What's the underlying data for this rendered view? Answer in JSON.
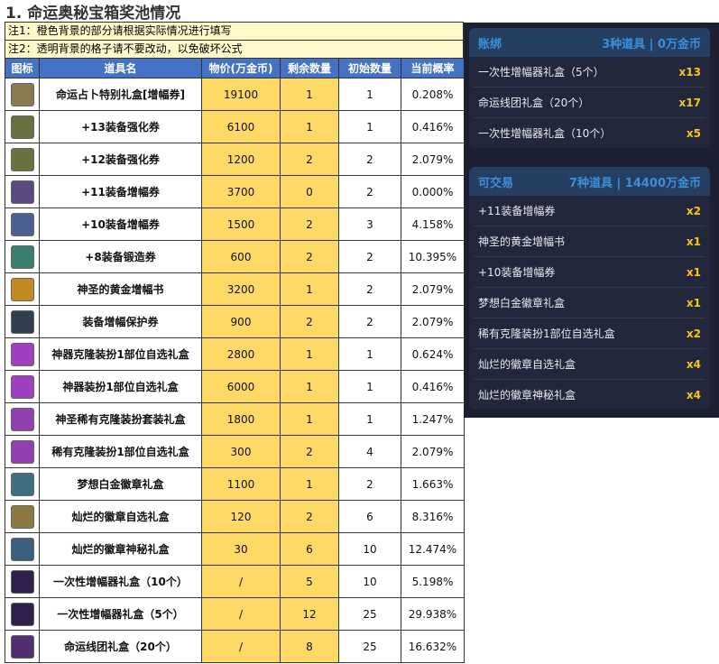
{
  "title": "1. 命运奥秘宝箱奖池情况",
  "notes": [
    "注1：橙色背景的部分请根据实际情况进行填写",
    "注2：透明背景的格子请不要改动，以免破坏公式"
  ],
  "headers": [
    "图标",
    "道具名",
    "物价(万金币)",
    "剩余数量",
    "初始数量",
    "当前概率"
  ],
  "rows": [
    {
      "name": "命运占卜特别礼盒[增幅券]",
      "price": "19100",
      "remain": "1",
      "init": "1",
      "prob": "0.208%",
      "color": "#8a7a50"
    },
    {
      "name": "+13装备强化券",
      "price": "6100",
      "remain": "1",
      "init": "1",
      "prob": "0.416%",
      "color": "#6a7040"
    },
    {
      "name": "+12装备强化券",
      "price": "1200",
      "remain": "2",
      "init": "2",
      "prob": "2.079%",
      "color": "#6a7040"
    },
    {
      "name": "+11装备增幅券",
      "price": "3700",
      "remain": "0",
      "init": "2",
      "prob": "0.000%",
      "color": "#5a4a80"
    },
    {
      "name": "+10装备增幅券",
      "price": "1500",
      "remain": "2",
      "init": "3",
      "prob": "4.158%",
      "color": "#4a6090"
    },
    {
      "name": "+8装备锻造券",
      "price": "600",
      "remain": "2",
      "init": "2",
      "prob": "10.395%",
      "color": "#3a8070"
    },
    {
      "name": "神圣的黄金增幅书",
      "price": "3200",
      "remain": "1",
      "init": "2",
      "prob": "2.079%",
      "color": "#c08a20"
    },
    {
      "name": "装备增幅保护券",
      "price": "900",
      "remain": "2",
      "init": "2",
      "prob": "2.079%",
      "color": "#304050"
    },
    {
      "name": "神器克隆装扮1部位自选礼盒",
      "price": "2800",
      "remain": "1",
      "init": "1",
      "prob": "0.624%",
      "color": "#a040c0"
    },
    {
      "name": "神器装扮1部位自选礼盒",
      "price": "6000",
      "remain": "1",
      "init": "1",
      "prob": "0.416%",
      "color": "#a040c0"
    },
    {
      "name": "神圣稀有克隆装扮套装礼盒",
      "price": "1800",
      "remain": "1",
      "init": "1",
      "prob": "1.247%",
      "color": "#9040b0"
    },
    {
      "name": "稀有克隆装扮1部位自选礼盒",
      "price": "300",
      "remain": "2",
      "init": "4",
      "prob": "2.079%",
      "color": "#9040b0"
    },
    {
      "name": "梦想白金徽章礼盒",
      "price": "1100",
      "remain": "1",
      "init": "2",
      "prob": "1.663%",
      "color": "#407080"
    },
    {
      "name": "灿烂的徽章自选礼盒",
      "price": "120",
      "remain": "2",
      "init": "6",
      "prob": "8.316%",
      "color": "#8a7a40"
    },
    {
      "name": "灿烂的徽章神秘礼盒",
      "price": "30",
      "remain": "6",
      "init": "10",
      "prob": "12.474%",
      "color": "#3a6080"
    },
    {
      "name": "一次性增幅器礼盒（10个）",
      "price": "/",
      "remain": "5",
      "init": "10",
      "prob": "5.198%",
      "color": "#302050"
    },
    {
      "name": "一次性增幅器礼盒（5个）",
      "price": "/",
      "remain": "12",
      "init": "25",
      "prob": "29.938%",
      "color": "#302050"
    },
    {
      "name": "命运线团礼盒（20个）",
      "price": "/",
      "remain": "8",
      "init": "25",
      "prob": "16.632%",
      "color": "#503070"
    }
  ],
  "panel": {
    "bound": {
      "label": "账绑",
      "summary": "3种道具 | 0万金币",
      "items": [
        {
          "name": "一次性增幅器礼盒（5个）",
          "qty": "x13"
        },
        {
          "name": "命运线团礼盒（20个）",
          "qty": "x17"
        },
        {
          "name": "一次性增幅器礼盒（10个）",
          "qty": "x5"
        }
      ]
    },
    "trade": {
      "label": "可交易",
      "summary": "7种道具 | 14400万金币",
      "items": [
        {
          "name": "+11装备增幅券",
          "qty": "x2"
        },
        {
          "name": "神圣的黄金增幅书",
          "qty": "x1"
        },
        {
          "name": "+10装备增幅券",
          "qty": "x1"
        },
        {
          "name": "梦想白金徽章礼盒",
          "qty": "x1"
        },
        {
          "name": "稀有克隆装扮1部位自选礼盒",
          "qty": "x2"
        },
        {
          "name": "灿烂的徽章自选礼盒",
          "qty": "x4"
        },
        {
          "name": "灿烂的徽章神秘礼盒",
          "qty": "x4"
        }
      ]
    }
  }
}
